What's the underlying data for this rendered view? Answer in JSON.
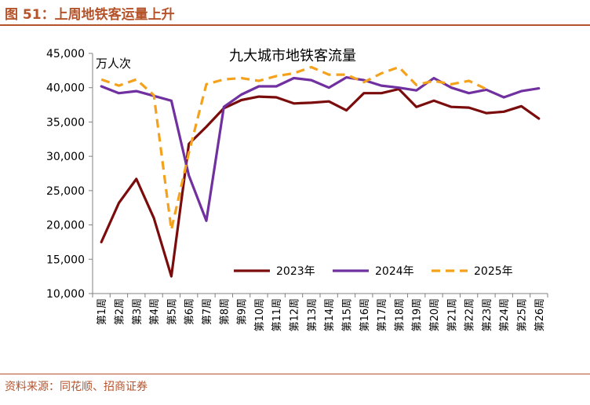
{
  "figure": {
    "title": "图 51：上周地铁客运量上升",
    "source": "资料来源：同花顺、招商证券"
  },
  "chart_data": {
    "type": "line",
    "title": "九大城市地铁客流量",
    "ylabel": "万人次",
    "xlabel": "",
    "ylim": [
      10000,
      45000
    ],
    "yticks": [
      10000,
      15000,
      20000,
      25000,
      30000,
      35000,
      40000,
      45000
    ],
    "ytick_labels": [
      "10,000",
      "15,000",
      "20,000",
      "25,000",
      "30,000",
      "35,000",
      "40,000",
      "45,000"
    ],
    "categories": [
      "第1周",
      "第2周",
      "第3周",
      "第4周",
      "第5周",
      "第6周",
      "第7周",
      "第8周",
      "第9周",
      "第10周",
      "第11周",
      "第12周",
      "第13周",
      "第14周",
      "第15周",
      "第16周",
      "第17周",
      "第18周",
      "第19周",
      "第20周",
      "第21周",
      "第22周",
      "第23周",
      "第24周",
      "第25周",
      "第26周"
    ],
    "legend_position": "lower-right",
    "series": [
      {
        "name": "2023年",
        "color": "#7b0c0c",
        "style": "solid",
        "values": [
          17500,
          23200,
          26700,
          21000,
          12500,
          31800,
          34300,
          37000,
          38200,
          38700,
          38600,
          37700,
          37800,
          38000,
          36700,
          39200,
          39200,
          39800,
          37200,
          38100,
          37200,
          37100,
          36300,
          36500,
          37300,
          35500
        ]
      },
      {
        "name": "2024年",
        "color": "#7030a0",
        "style": "solid",
        "values": [
          40200,
          39200,
          39500,
          38800,
          38100,
          27200,
          20600,
          37200,
          39000,
          40200,
          40200,
          41400,
          41100,
          40000,
          41500,
          41100,
          40300,
          40000,
          39600,
          41400,
          40000,
          39200,
          39700,
          38600,
          39500,
          39900
        ]
      },
      {
        "name": "2025年",
        "color": "#f4a11c",
        "style": "dashed",
        "values": [
          41200,
          40300,
          41200,
          38900,
          19300,
          30500,
          40500,
          41200,
          41400,
          41000,
          41700,
          42100,
          43000,
          41900,
          41900,
          40800,
          42100,
          43000,
          40400,
          41000,
          40500,
          41000,
          39800,
          null,
          null,
          null
        ]
      }
    ]
  }
}
